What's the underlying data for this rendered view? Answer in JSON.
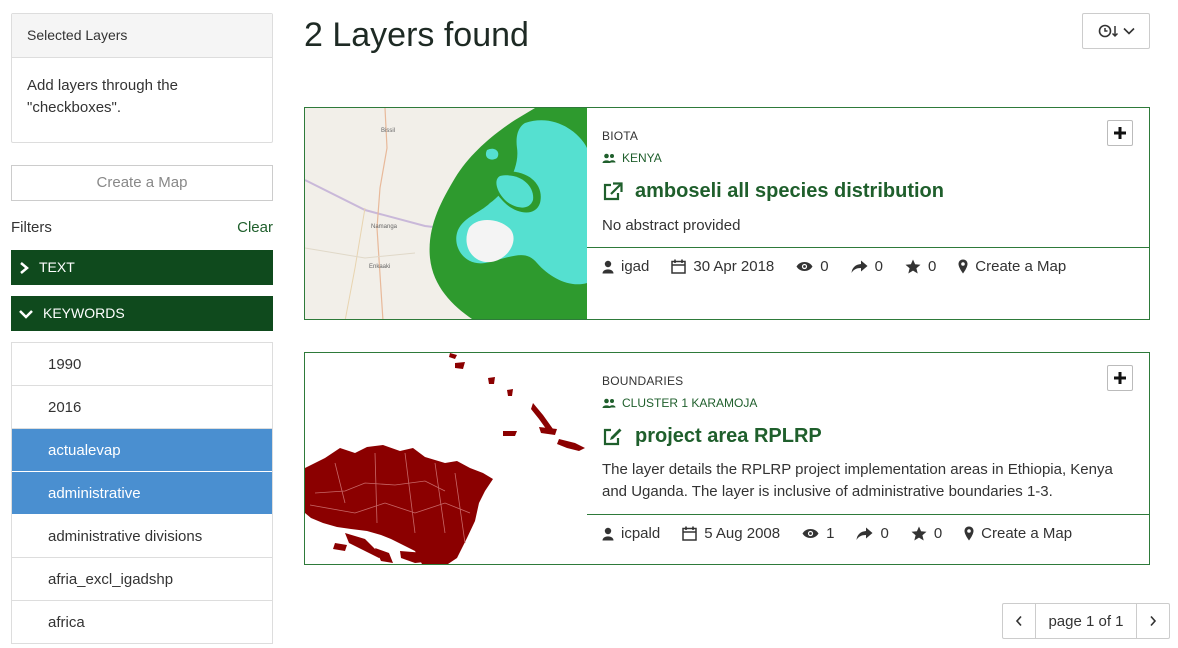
{
  "sidebar": {
    "selected_layers_title": "Selected Layers",
    "selected_layers_hint": "Add layers through the \"checkboxes\".",
    "create_map_label": "Create a Map",
    "filters_label": "Filters",
    "clear_label": "Clear",
    "facets": [
      {
        "label": "TEXT",
        "expanded": false
      },
      {
        "label": "KEYWORDS",
        "expanded": true
      }
    ],
    "keywords": [
      {
        "label": "1990",
        "selected": false
      },
      {
        "label": "2016",
        "selected": false
      },
      {
        "label": "actualevap",
        "selected": true
      },
      {
        "label": "administrative",
        "selected": true
      },
      {
        "label": "administrative divisions",
        "selected": false
      },
      {
        "label": "afria_excl_igadshp",
        "selected": false
      },
      {
        "label": "africa",
        "selected": false
      }
    ]
  },
  "main": {
    "title": "2 Layers found",
    "layers": [
      {
        "category": "BIOTA",
        "group": "KENYA",
        "title": "amboseli all species distribution",
        "abstract": "No abstract provided",
        "owner": "igad",
        "date": "30 Apr 2018",
        "views": "0",
        "shares": "0",
        "rating": "0",
        "create_map": "Create a Map",
        "thumb_labels": [
          "Bissil",
          "Namanga",
          "Enkaaki"
        ]
      },
      {
        "category": "BOUNDARIES",
        "group": "CLUSTER 1 KARAMOJA",
        "title": "project area RPLRP",
        "abstract": "The layer details the RPLRP project implementation areas in Ethiopia, Kenya and Uganda. The layer is inclusive of administrative boundaries 1-3.",
        "owner": "icpald",
        "date": "5 Aug 2008",
        "views": "1",
        "shares": "0",
        "rating": "0",
        "create_map": "Create a Map"
      }
    ],
    "pager": {
      "label": "page 1 of 1",
      "prev": "‹",
      "next": "›"
    }
  },
  "colors": {
    "brand_green": "#0f4a1d",
    "link_green": "#1f5f2c",
    "selected_blue": "#4a8fd0",
    "card_border": "#2e7a3a"
  }
}
